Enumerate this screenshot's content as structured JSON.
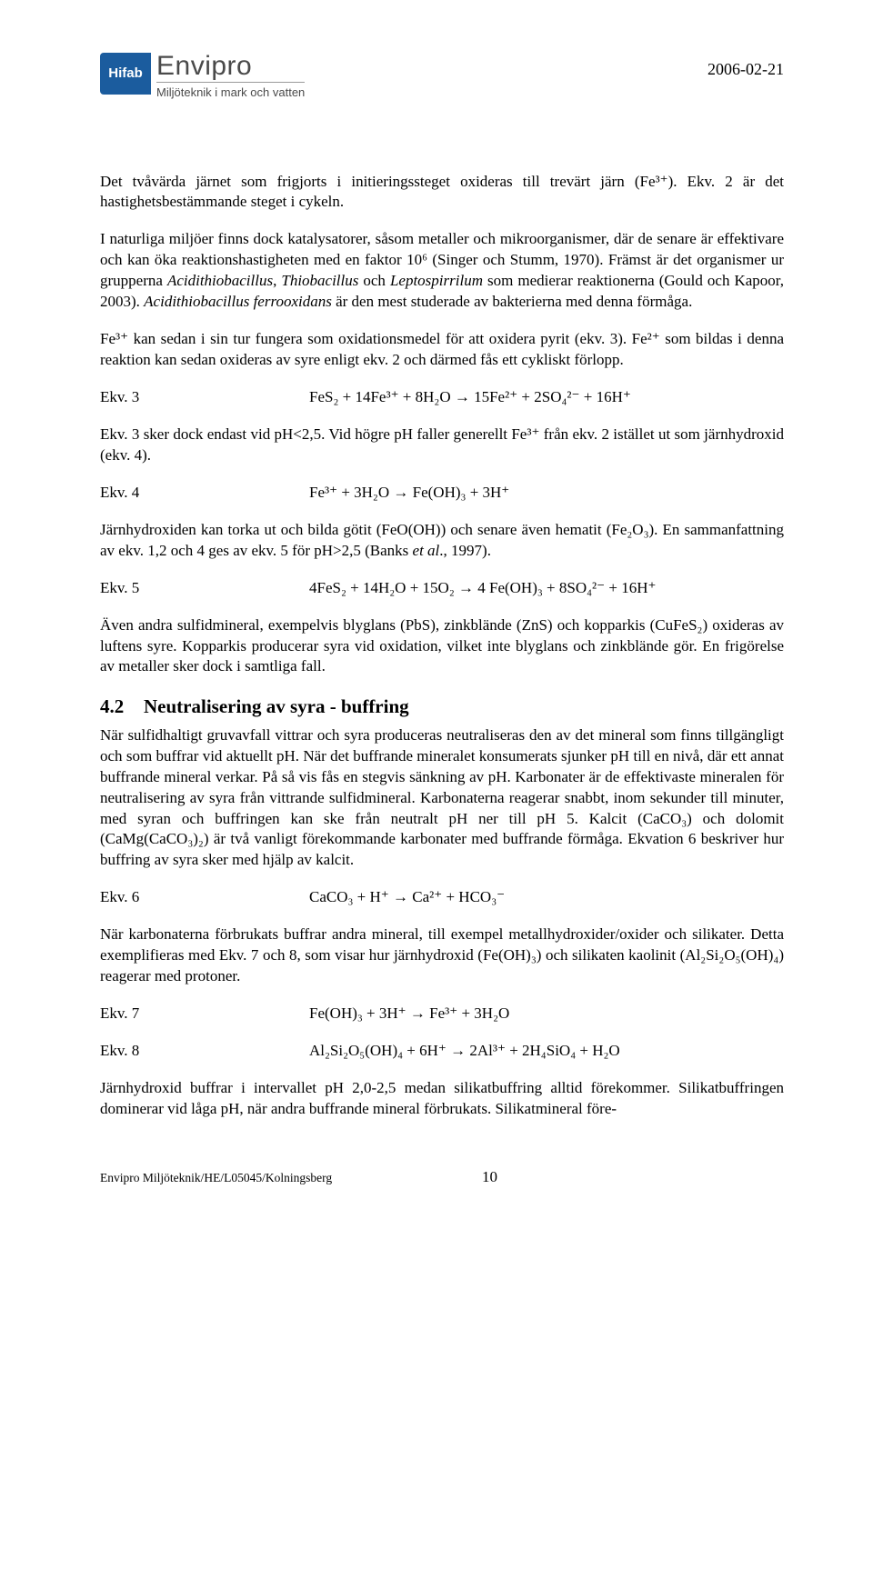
{
  "header": {
    "logo_mark": "Hifab",
    "logo_title": "Envipro",
    "logo_subtitle": "Miljöteknik i mark och vatten",
    "date": "2006-02-21"
  },
  "body": {
    "p1": "Det tvåvärda järnet som frigjorts i initieringssteget oxideras till trevärt järn (Fe³⁺). Ekv. 2 är det hastighetsbestämmande steget i cykeln.",
    "p2_a": "I naturliga miljöer finns dock katalysatorer, såsom metaller och mikroorganismer, där de senare är effektivare och kan öka reaktionshastigheten med en faktor 10⁶ (Singer och Stumm, 1970). Främst är det organismer ur grupperna ",
    "p2_b": "Acidithiobacillus",
    "p2_c": ", ",
    "p2_d": "Thiobacillus",
    "p2_e": " och ",
    "p2_f": "Leptospirrilum",
    "p2_g": " som medierar reaktionerna (Gould och Kapoor, 2003). ",
    "p2_h": "Acidithiobacillus ferrooxidans",
    "p2_i": " är den mest studerade av bakterierna med denna förmåga.",
    "p3": "Fe³⁺ kan sedan i sin tur fungera som oxidationsmedel för att oxidera pyrit (ekv. 3). Fe²⁺ som bildas i denna reaktion kan sedan oxideras av syre enligt ekv. 2 och därmed fås ett cykliskt förlopp.",
    "eq3_label": "Ekv. 3",
    "eq3": "FeS₂ + 14Fe³⁺ + 8H₂O → 15Fe²⁺ + 2SO₄²⁻ + 16H⁺",
    "p4": "Ekv. 3 sker dock endast vid pH<2,5. Vid högre pH faller generellt Fe³⁺ från ekv. 2 istället ut som järnhydroxid (ekv. 4).",
    "eq4_label": "Ekv. 4",
    "eq4": "Fe³⁺ + 3H₂O → Fe(OH)₃ + 3H⁺",
    "p5_a": "Järnhydroxiden kan torka ut och bilda götit (FeO(OH)) och senare även hematit (Fe₂O₃). En sammanfattning av ekv. 1,2 och 4 ges av ekv. 5 för pH>2,5 (Banks ",
    "p5_b": "et al",
    "p5_c": "., 1997).",
    "eq5_label": "Ekv. 5",
    "eq5": "4FeS₂ + 14H₂O + 15O₂ → 4 Fe(OH)₃ + 8SO₄²⁻ + 16H⁺",
    "p6": "Även andra sulfidmineral, exempelvis blyglans (PbS), zinkblände (ZnS) och kopparkis (CuFeS₂) oxideras av luftens syre. Kopparkis producerar syra vid oxidation, vilket inte blyglans och zinkblände gör. En frigörelse av metaller sker dock i samtliga fall.",
    "sec_num": "4.2",
    "sec_title": "Neutralisering av syra - buffring",
    "p7": "När sulfidhaltigt gruvavfall vittrar och syra produceras neutraliseras den av det mineral som finns tillgängligt och som buffrar vid aktuellt pH. När det buffrande mineralet konsumerats sjunker pH till en nivå, där ett annat buffrande mineral verkar. På så vis fås en stegvis sänkning av pH. Karbonater är de effektivaste mineralen för neutralisering av syra från vittrande sulfidmineral. Karbonaterna reagerar snabbt, inom sekunder till minuter, med syran och buffringen kan ske från neutralt pH ner till pH 5. Kalcit (CaCO₃) och dolomit (CaMg(CaCO₃)₂) är två vanligt förekommande karbonater med buffrande förmåga. Ekvation 6 beskriver hur buffring av syra sker med hjälp av kalcit.",
    "eq6_label": "Ekv. 6",
    "eq6": "CaCO₃ + H⁺ → Ca²⁺ + HCO₃⁻",
    "p8": "När karbonaterna förbrukats buffrar andra mineral, till exempel metallhydroxider/oxider och silikater. Detta exemplifieras med Ekv. 7 och 8, som visar hur järnhydroxid (Fe(OH)₃) och silikaten kaolinit (Al₂Si₂O₅(OH)₄) reagerar med protoner.",
    "eq7_label": "Ekv. 7",
    "eq7": "Fe(OH)₃ + 3H⁺ → Fe³⁺ + 3H₂O",
    "eq8_label": "Ekv. 8",
    "eq8": "Al₂Si₂O₅(OH)₄ + 6H⁺ → 2Al³⁺ + 2H₄SiO₄ + H₂O",
    "p9": "Järnhydroxid buffrar i intervallet pH 2,0-2,5 medan silikatbuffring alltid förekommer. Silikatbuffringen dominerar vid låga pH, när andra buffrande mineral förbrukats. Silikatmineral före-"
  },
  "footer": {
    "left": "Envipro Miljöteknik/HE/L05045/Kolningsberg",
    "page": "10"
  }
}
